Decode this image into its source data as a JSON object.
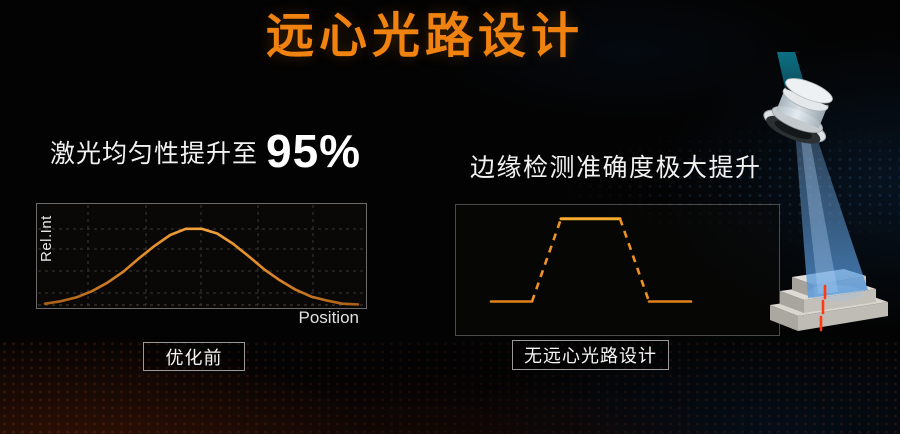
{
  "title": "远心光路设计",
  "left_panel": {
    "heading": "激光均匀性提升至",
    "highlight_value": "95%",
    "chart_ylabel": "Rel.Int",
    "chart_xlabel": "Position",
    "caption": "优化前"
  },
  "right_panel": {
    "heading": "边缘检测准确度极大提升",
    "caption": "无远心光路设计"
  },
  "illustration": {
    "name": "telecentric-lens-blue-beam-on-steps",
    "beam_color": "#5b9bd8",
    "laser_mark_color": "#ff3a10"
  },
  "colors": {
    "title_orange": "#F0820F",
    "curve_orange": "#ED8526",
    "panel_border": "#6b6b6b",
    "text_white": "#f2f2f2",
    "background": "#030303"
  },
  "chart_data": [
    {
      "type": "line",
      "title": "优化前激光强度分布",
      "xlabel": "Position",
      "ylabel": "Rel.Int",
      "grid": true,
      "axis_ticks": "none",
      "line_style": "solid",
      "xlim": [
        0,
        1
      ],
      "ylim": [
        0,
        1
      ],
      "x": [
        0,
        0.05,
        0.1,
        0.15,
        0.2,
        0.25,
        0.3,
        0.35,
        0.4,
        0.45,
        0.5,
        0.55,
        0.6,
        0.65,
        0.7,
        0.75,
        0.8,
        0.85,
        0.9,
        0.95,
        1
      ],
      "y": [
        0.03,
        0.06,
        0.11,
        0.19,
        0.3,
        0.44,
        0.61,
        0.77,
        0.91,
        0.99,
        0.99,
        0.93,
        0.8,
        0.64,
        0.47,
        0.33,
        0.21,
        0.12,
        0.07,
        0.03,
        0.02
      ]
    },
    {
      "type": "line",
      "title": "无远心光路设计边缘强度剖面",
      "xlabel": "",
      "ylabel": "",
      "grid": false,
      "xlim": [
        0,
        1
      ],
      "ylim": [
        0,
        1
      ],
      "segments": [
        {
          "x": [
            0,
            0.205
          ],
          "y": [
            0.06,
            0.06
          ],
          "dashed": false
        },
        {
          "x": [
            0.205,
            0.35
          ],
          "y": [
            0.06,
            0.97
          ],
          "dashed": true
        },
        {
          "x": [
            0.35,
            0.645
          ],
          "y": [
            0.97,
            0.97
          ],
          "dashed": false
        },
        {
          "x": [
            0.645,
            0.79
          ],
          "y": [
            0.97,
            0.06
          ],
          "dashed": true
        },
        {
          "x": [
            0.79,
            1
          ],
          "y": [
            0.06,
            0.06
          ],
          "dashed": false
        }
      ]
    }
  ]
}
